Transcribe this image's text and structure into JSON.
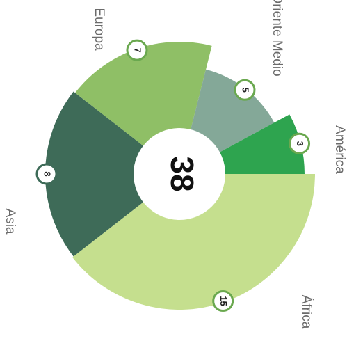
{
  "chart_data": {
    "type": "pie",
    "categories": [
      "África",
      "Asia",
      "Europa",
      "Oriente Medio",
      "América"
    ],
    "values": [
      15,
      8,
      7,
      5,
      3
    ],
    "colors": [
      "#c5df8e",
      "#3e6b58",
      "#8fbf66",
      "#84a898",
      "#2ea44f"
    ],
    "total": 38
  }
}
